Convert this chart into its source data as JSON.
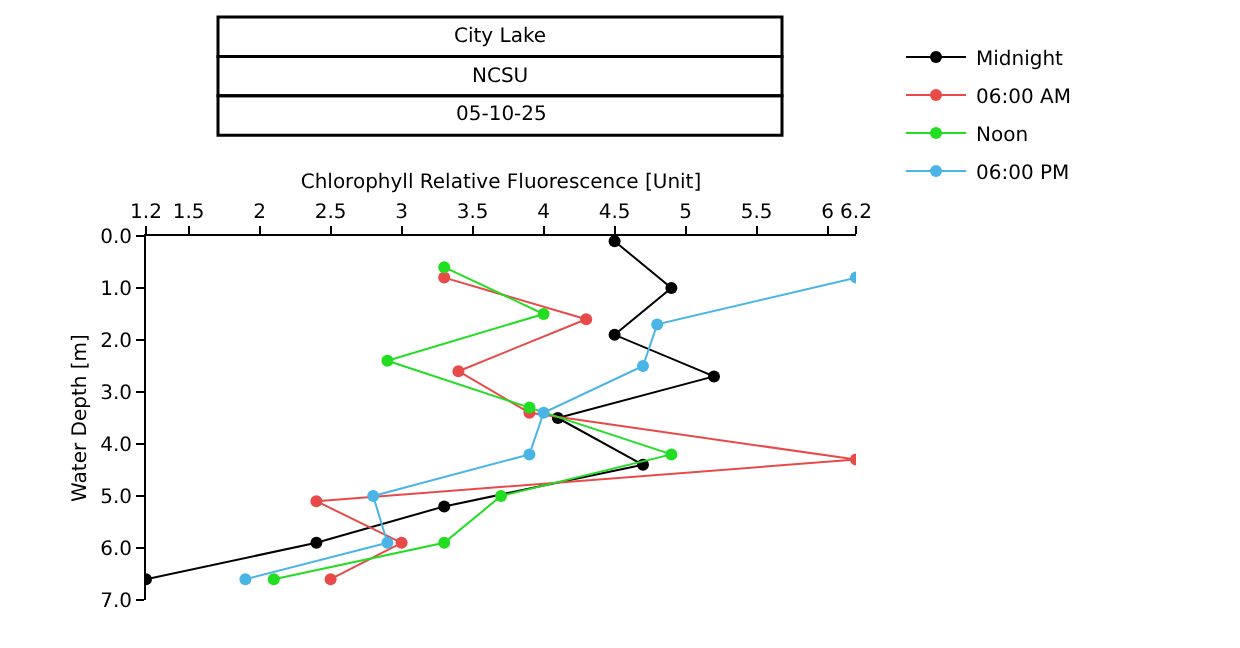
{
  "chart_data": {
    "type": "line",
    "orientation": "horizontal",
    "title": "City Lake",
    "subtitle": "NCSU",
    "annotations": [
      "05-10-25"
    ],
    "xlabel": "Chlorophyll Relative Fluorescence [Unit]",
    "ylabel": "Water Depth [m]",
    "series": [
      {
        "name": "Midnight",
        "color": "#000000",
        "x": [
          0.1,
          1.0,
          1.9,
          2.7,
          3.5,
          4.4,
          5.2,
          5.9,
          6.6
        ],
        "values": [
          4.5,
          4.9,
          4.5,
          5.2,
          4.1,
          4.7,
          3.3,
          2.4,
          1.2
        ]
      },
      {
        "name": "06:00 AM",
        "color": "#e84a4a",
        "x": [
          0.8,
          1.6,
          2.6,
          3.4,
          4.3,
          5.1,
          5.9,
          6.6
        ],
        "values": [
          3.3,
          4.3,
          3.4,
          3.9,
          6.2,
          2.4,
          3.0,
          2.5
        ]
      },
      {
        "name": "Noon",
        "color": "#22dd22",
        "x": [
          0.6,
          1.5,
          2.4,
          3.3,
          4.2,
          5.0,
          5.9,
          6.6
        ],
        "values": [
          3.3,
          4.0,
          2.9,
          3.9,
          4.9,
          3.7,
          3.3,
          2.1
        ]
      },
      {
        "name": "06:00 PM",
        "color": "#4ab4e6",
        "x": [
          0.8,
          1.7,
          2.5,
          3.4,
          4.2,
          5.0,
          5.9,
          6.6
        ],
        "values": [
          6.2,
          4.8,
          4.7,
          4.0,
          3.9,
          2.8,
          2.9,
          1.9
        ]
      }
    ],
    "xlim": [
      1.2,
      6.2
    ],
    "xticks": [
      1.2,
      1.5,
      2,
      2.5,
      3,
      3.5,
      4,
      4.5,
      5,
      5.5,
      6,
      6.2
    ],
    "ylim": [
      7.0,
      0.0
    ],
    "yticks": [
      {
        "value": 0,
        "label": "0.0"
      },
      {
        "value": 1,
        "label": "1.0"
      },
      {
        "value": 2,
        "label": "2.0"
      },
      {
        "value": 3,
        "label": "3.0"
      },
      {
        "value": 4,
        "label": "4.0"
      },
      {
        "value": 5,
        "label": "5.0"
      },
      {
        "value": 6,
        "label": "6.0"
      },
      {
        "value": 7,
        "label": "7.0"
      }
    ],
    "grid": false,
    "legend": "top right",
    "marker": "circle",
    "line_style": "solid"
  }
}
